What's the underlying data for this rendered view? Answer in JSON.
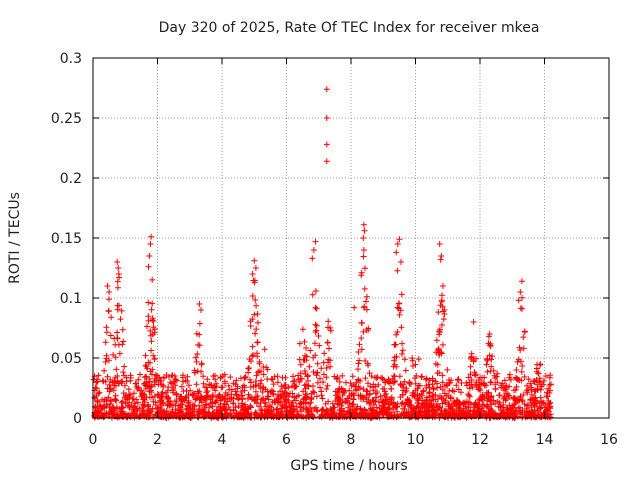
{
  "chart_data": {
    "type": "scatter",
    "title": "Day 320 of 2025, Rate Of TEC Index for receiver mkea",
    "xlabel": "GPS time / hours",
    "ylabel": "ROTI / TECUs",
    "xlim": [
      0,
      16
    ],
    "ylim": [
      0,
      0.3
    ],
    "xticks": [
      0,
      2,
      4,
      6,
      8,
      10,
      12,
      14,
      16
    ],
    "yticks": [
      0,
      0.05,
      0.1,
      0.15,
      0.2,
      0.25,
      0.3
    ],
    "xtick_labels": [
      "0",
      "2",
      "4",
      "6",
      "8",
      "10",
      "12",
      "14",
      "16"
    ],
    "ytick_labels": [
      "0",
      "0.05",
      "0.1",
      "0.15",
      "0.2",
      "0.25",
      "0.3"
    ],
    "grid": true,
    "marker": "+",
    "color": "#ff0000",
    "data_extent_hours": [
      0,
      14.2
    ],
    "notable_points": [
      {
        "x": 7.25,
        "y": 0.274
      },
      {
        "x": 7.25,
        "y": 0.25
      },
      {
        "x": 7.25,
        "y": 0.228
      },
      {
        "x": 7.25,
        "y": 0.214
      },
      {
        "x": 1.8,
        "y": 0.151
      },
      {
        "x": 1.78,
        "y": 0.145
      },
      {
        "x": 1.75,
        "y": 0.135
      },
      {
        "x": 1.72,
        "y": 0.126
      },
      {
        "x": 0.75,
        "y": 0.13
      },
      {
        "x": 0.78,
        "y": 0.125
      },
      {
        "x": 0.8,
        "y": 0.12
      },
      {
        "x": 0.45,
        "y": 0.11
      },
      {
        "x": 0.5,
        "y": 0.105
      },
      {
        "x": 5.0,
        "y": 0.131
      },
      {
        "x": 5.05,
        "y": 0.125
      },
      {
        "x": 4.95,
        "y": 0.12
      },
      {
        "x": 6.9,
        "y": 0.147
      },
      {
        "x": 6.85,
        "y": 0.14
      },
      {
        "x": 6.8,
        "y": 0.133
      },
      {
        "x": 8.4,
        "y": 0.161
      },
      {
        "x": 8.42,
        "y": 0.156
      },
      {
        "x": 8.38,
        "y": 0.15
      },
      {
        "x": 8.4,
        "y": 0.14
      },
      {
        "x": 9.5,
        "y": 0.149
      },
      {
        "x": 9.45,
        "y": 0.145
      },
      {
        "x": 9.4,
        "y": 0.138
      },
      {
        "x": 9.55,
        "y": 0.13
      },
      {
        "x": 10.75,
        "y": 0.145
      },
      {
        "x": 10.8,
        "y": 0.135
      },
      {
        "x": 10.78,
        "y": 0.132
      },
      {
        "x": 10.85,
        "y": 0.11
      },
      {
        "x": 10.9,
        "y": 0.09
      },
      {
        "x": 13.3,
        "y": 0.114
      },
      {
        "x": 13.25,
        "y": 0.105
      },
      {
        "x": 13.2,
        "y": 0.098
      },
      {
        "x": 3.3,
        "y": 0.095
      },
      {
        "x": 3.35,
        "y": 0.09
      },
      {
        "x": 8.1,
        "y": 0.092
      },
      {
        "x": 11.8,
        "y": 0.08
      },
      {
        "x": 12.3,
        "y": 0.07
      }
    ]
  }
}
